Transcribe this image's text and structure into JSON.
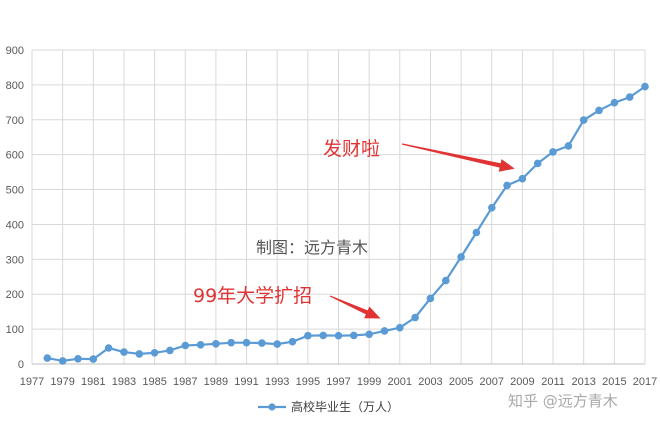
{
  "chart_data": {
    "type": "line",
    "x": [
      1978,
      1979,
      1980,
      1981,
      1982,
      1983,
      1984,
      1985,
      1986,
      1987,
      1988,
      1989,
      1990,
      1991,
      1992,
      1993,
      1994,
      1995,
      1996,
      1997,
      1998,
      1999,
      2000,
      2001,
      2002,
      2003,
      2004,
      2005,
      2006,
      2007,
      2008,
      2009,
      2010,
      2011,
      2012,
      2013,
      2014,
      2015,
      2016,
      2017
    ],
    "series": [
      {
        "name": "高校毕业生（万人）",
        "values": [
          17,
          9,
          15,
          14,
          46,
          34,
          29,
          32,
          39,
          53,
          55,
          58,
          61,
          61,
          60,
          57,
          64,
          81,
          82,
          81,
          82,
          85,
          95,
          104,
          133,
          188,
          239,
          307,
          377,
          448,
          512,
          531,
          575,
          608,
          625,
          699,
          727,
          749,
          765,
          795
        ],
        "color": "#5b9bd5"
      }
    ],
    "ylim": [
      0,
      900
    ],
    "yticks": [
      0,
      100,
      200,
      300,
      400,
      500,
      600,
      700,
      800,
      900
    ],
    "xticks": [
      1977,
      1979,
      1981,
      1983,
      1985,
      1987,
      1989,
      1991,
      1993,
      1995,
      1997,
      1999,
      2001,
      2003,
      2005,
      2007,
      2009,
      2011,
      2013,
      2015,
      2017
    ],
    "xlim": [
      1977,
      2017
    ],
    "grid": true,
    "legend": "bottom",
    "annotations": [
      {
        "text": "发财啦",
        "arrow_to_x": 2008.5,
        "arrow_to_y": 560
      },
      {
        "text": "99年大学扩招",
        "arrow_to_x": 2000,
        "arrow_to_y": 96
      }
    ],
    "credit_text": "制图：远方青木",
    "watermark": "知乎 @远方青木",
    "annotation_color": "#e03434"
  }
}
